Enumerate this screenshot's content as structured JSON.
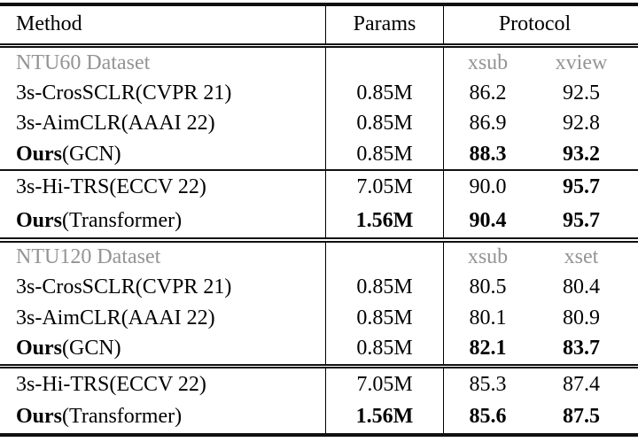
{
  "colors": {
    "muted": "#949494",
    "rule": "#101010"
  },
  "header": {
    "method": "Method",
    "params": "Params",
    "protocol": "Protocol"
  },
  "sections": [
    {
      "label": "NTU60 Dataset",
      "protocol_cols": [
        "xsub",
        "xview"
      ],
      "rows": [
        {
          "method": "3s-CrosSCLR",
          "note": " (CVPR 21)",
          "params": "0.85M",
          "v1": "86.2",
          "v2": "92.5"
        },
        {
          "method": "3s-AimCLR",
          "note": " (AAAI 22)",
          "params": "0.85M",
          "v1": "86.9",
          "v2": "92.8"
        },
        {
          "method": "Ours",
          "note": " (GCN)",
          "params": "0.85M",
          "v1": "88.3",
          "v2": "93.2"
        }
      ]
    },
    {
      "rows": [
        {
          "method": "3s-Hi-TRS",
          "note": " (ECCV 22)",
          "params": "7.05M",
          "v1": "90.0",
          "v2": "95.7"
        },
        {
          "method": "Ours",
          "note": " (Transformer)",
          "params": "1.56M",
          "v1": "90.4",
          "v2": "95.7"
        }
      ]
    },
    {
      "label": "NTU120 Dataset",
      "protocol_cols": [
        "xsub",
        "xset"
      ],
      "rows": [
        {
          "method": "3s-CrosSCLR",
          "note": " (CVPR 21)",
          "params": "0.85M",
          "v1": "80.5",
          "v2": "80.4"
        },
        {
          "method": "3s-AimCLR",
          "note": " (AAAI 22)",
          "params": "0.85M",
          "v1": "80.1",
          "v2": "80.9"
        },
        {
          "method": "Ours",
          "note": " (GCN)",
          "params": "0.85M",
          "v1": "82.1",
          "v2": "83.7"
        }
      ]
    },
    {
      "rows": [
        {
          "method": "3s-Hi-TRS",
          "note": " (ECCV 22)",
          "params": "7.05M",
          "v1": "85.3",
          "v2": "87.4"
        },
        {
          "method": "Ours",
          "note": " (Transformer)",
          "params": "1.56M",
          "v1": "85.6",
          "v2": "87.5"
        }
      ]
    }
  ]
}
